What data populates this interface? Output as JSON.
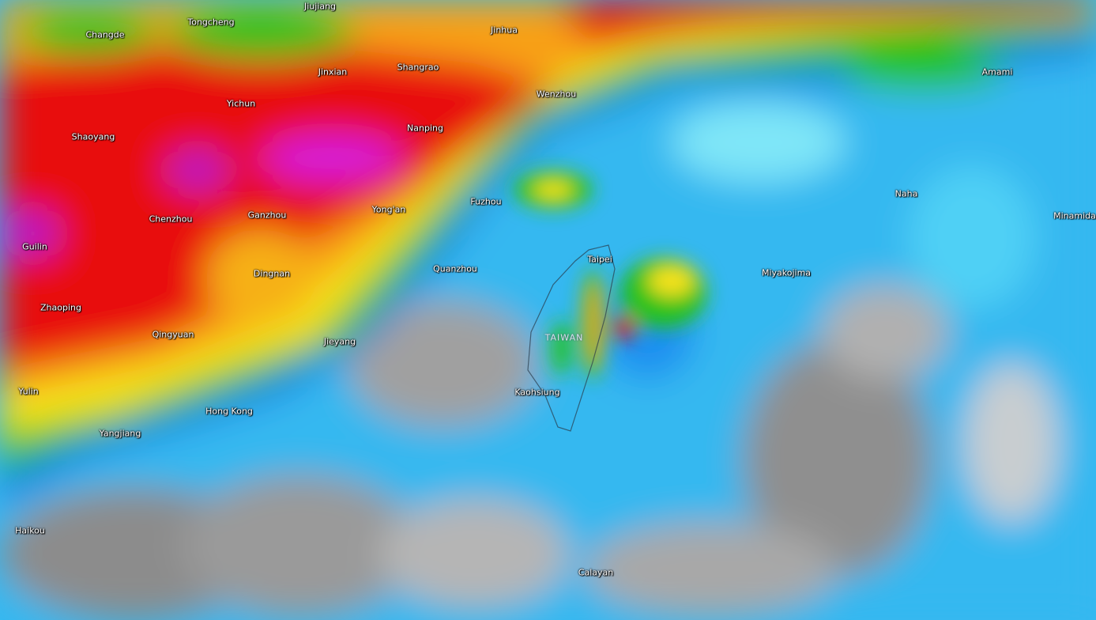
{
  "map": {
    "type": "precipitation radar overlay",
    "colors": {
      "none": "#8c8c8c",
      "trace": "#cfd3d6",
      "light": "#7fe6f8",
      "light_moderate": "#1fa8ee",
      "moderate": "#0a6fe0",
      "heavy_green": "#25c21a",
      "yellow": "#f6e21a",
      "orange": "#f8a018",
      "red": "#e81010",
      "extreme": "#d61ad8"
    },
    "cities": [
      {
        "name": "Jiujiang",
        "id": "jiujiang"
      },
      {
        "name": "Changde",
        "id": "changde"
      },
      {
        "name": "Tongcheng",
        "id": "tongcheng"
      },
      {
        "name": "Jinhua",
        "id": "jinhua"
      },
      {
        "name": "Jinxian",
        "id": "jinxian"
      },
      {
        "name": "Shangrao",
        "id": "shangrao"
      },
      {
        "name": "Wenzhou",
        "id": "wenzhou"
      },
      {
        "name": "Amami",
        "id": "amami"
      },
      {
        "name": "Yichun",
        "id": "yichun"
      },
      {
        "name": "Nanping",
        "id": "nanping"
      },
      {
        "name": "Shaoyang",
        "id": "shaoyang"
      },
      {
        "name": "Naha",
        "id": "naha"
      },
      {
        "name": "Fuzhou",
        "id": "fuzhou"
      },
      {
        "name": "Chenzhou",
        "id": "chenzhou"
      },
      {
        "name": "Ganzhou",
        "id": "ganzhou"
      },
      {
        "name": "Yong'an",
        "id": "yongan"
      },
      {
        "name": "Minamida",
        "id": "minamidaito"
      },
      {
        "name": "Guilin",
        "id": "guilin"
      },
      {
        "name": "Taipei",
        "id": "taipei"
      },
      {
        "name": "Miyakojima",
        "id": "miyakojima"
      },
      {
        "name": "Quanzhou",
        "id": "quanzhou"
      },
      {
        "name": "Dingnan",
        "id": "dingnan"
      },
      {
        "name": "Zhaoping",
        "id": "zhaoping"
      },
      {
        "name": "Qingyuan",
        "id": "qingyuan"
      },
      {
        "name": "Jieyang",
        "id": "jieyang"
      },
      {
        "name": "Kaohsiung",
        "id": "kaohsiung"
      },
      {
        "name": "Yulin",
        "id": "yulin"
      },
      {
        "name": "Hong Kong",
        "id": "hongkong"
      },
      {
        "name": "Yangjiang",
        "id": "yangjiang"
      },
      {
        "name": "Haikou",
        "id": "haikou"
      },
      {
        "name": "Calayan",
        "id": "calayan"
      }
    ],
    "country_label": "TAIWAN"
  }
}
